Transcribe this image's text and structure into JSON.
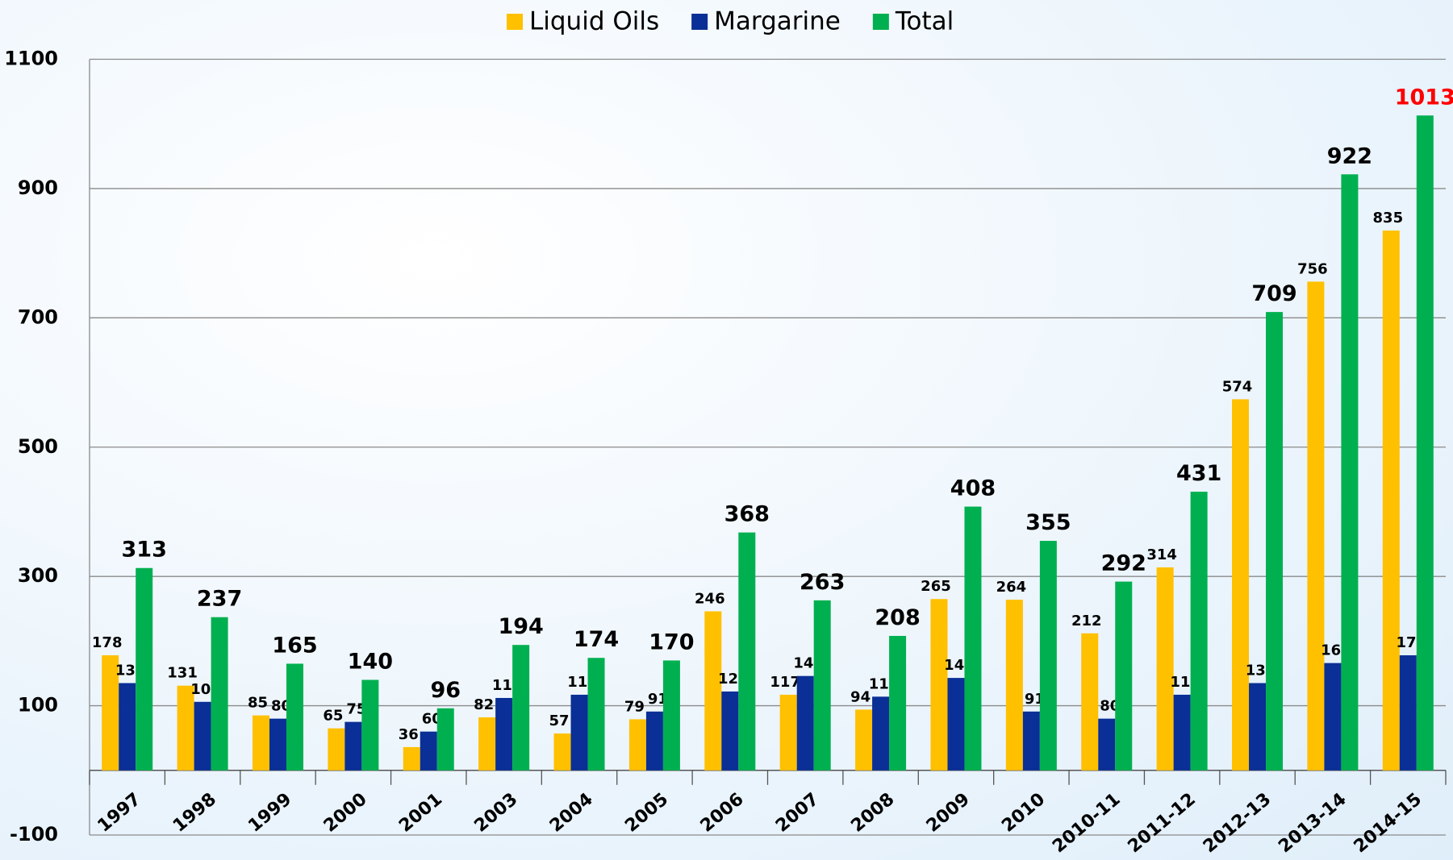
{
  "chart_data": {
    "type": "bar",
    "categories": [
      "1997",
      "1998",
      "1999",
      "2000",
      "2001",
      "2003",
      "2004",
      "2005",
      "2006",
      "2007",
      "2008",
      "2009",
      "2010",
      "2010-11",
      "2011-12",
      "2012-13",
      "2013-14",
      "2014-15"
    ],
    "series": [
      {
        "name": "Liquid Oils",
        "color": "#ffc000",
        "values": [
          178,
          131,
          85,
          65,
          36,
          82,
          57,
          79,
          246,
          117,
          94,
          265,
          264,
          212,
          314,
          574,
          756,
          835
        ]
      },
      {
        "name": "Margarine",
        "color": "#0a2f96",
        "values": [
          135,
          106,
          80,
          75,
          60,
          112,
          117,
          91,
          122,
          146,
          114,
          143,
          91,
          80,
          117,
          135,
          166,
          178
        ]
      },
      {
        "name": "Total",
        "color": "#00b050",
        "values": [
          313,
          237,
          165,
          140,
          96,
          194,
          174,
          170,
          368,
          263,
          208,
          408,
          355,
          292,
          431,
          709,
          922,
          1013
        ]
      }
    ],
    "highlight": {
      "series": 2,
      "index": 17,
      "color": "#ff0000"
    },
    "ylim": [
      -100,
      1100
    ],
    "yticks": [
      -100,
      100,
      300,
      500,
      700,
      900,
      1100
    ],
    "grid": true,
    "legend": "top"
  }
}
